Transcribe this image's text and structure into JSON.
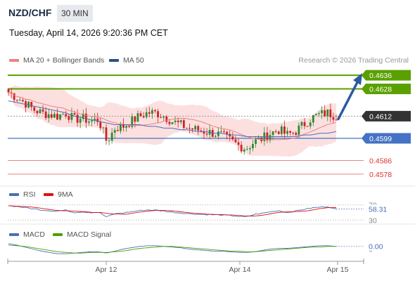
{
  "header": {
    "pair": "NZD/CHF",
    "timeframe": "30 MIN",
    "datetime": "Tuesday, April 14, 2026 9:20:36 PM CET"
  },
  "legend": {
    "ma20": "MA 20 + Bollinger Bands",
    "ma50": "MA 50",
    "credit": "Research © 2026 Trading Central",
    "rsi": "RSI",
    "rsi_ma": "9MA",
    "macd": "MACD",
    "macd_signal": "MACD Signal"
  },
  "colors": {
    "resistance": "#5aa000",
    "support": "#4472c4",
    "level_red": "#e03030",
    "current": "#333333",
    "bollinger_fill": "#fbd5d5",
    "ma20": "#f08080",
    "ma50": "#4a6fb5",
    "candle_up": "#2e8b2e",
    "candle_down": "#cc2222",
    "arrow": "#2c5aa0"
  },
  "chart_data": [
    {
      "type": "candlestick",
      "x_ticks": [
        "Apr 12",
        "Apr 14",
        "Apr 15"
      ],
      "ylim": [
        0.4573,
        0.4641
      ],
      "levels": [
        {
          "value": "0.4636",
          "kind": "resistance"
        },
        {
          "value": "0.4628",
          "kind": "resistance"
        },
        {
          "value": "0.4612",
          "kind": "current"
        },
        {
          "value": "0.4599",
          "kind": "support"
        },
        {
          "value": "0.4586",
          "kind": "level"
        },
        {
          "value": "0.4578",
          "kind": "level"
        }
      ],
      "close_path": [
        0.4626,
        0.4623,
        0.462,
        0.4616,
        0.4614,
        0.4613,
        0.4612,
        0.4614,
        0.461,
        0.4611,
        0.4609,
        0.461,
        0.4597,
        0.4605,
        0.4606,
        0.4609,
        0.4612,
        0.4614,
        0.4614,
        0.4612,
        0.4609,
        0.4607,
        0.4605,
        0.4604,
        0.4603,
        0.4602,
        0.4601,
        0.4598,
        0.4595,
        0.4593,
        0.4597,
        0.4599,
        0.4602,
        0.4604,
        0.4601,
        0.4603,
        0.4607,
        0.4611,
        0.4613,
        0.4614,
        0.4612
      ],
      "ma50_path": [
        0.4621,
        0.462,
        0.4619,
        0.4618,
        0.4617,
        0.4616,
        0.4615,
        0.4614,
        0.4612,
        0.4611,
        0.461,
        0.4609,
        0.4608,
        0.4607,
        0.4607,
        0.4607,
        0.4607,
        0.4606,
        0.4606,
        0.4605,
        0.4605,
        0.4604,
        0.4604,
        0.4603,
        0.4603,
        0.4602,
        0.4602,
        0.4601,
        0.4601,
        0.46,
        0.46,
        0.46,
        0.46,
        0.46,
        0.46,
        0.46,
        0.4601,
        0.4601,
        0.4602,
        0.4602,
        0.4603
      ]
    },
    {
      "type": "line",
      "name_label": "RSI",
      "ylim": [
        25,
        75
      ],
      "ticks": [
        "70",
        "30"
      ],
      "last_value": "58.31",
      "values": [
        68,
        66,
        63,
        60,
        57,
        55,
        54,
        56,
        50,
        52,
        50,
        51,
        38,
        47,
        49,
        52,
        55,
        57,
        56,
        54,
        51,
        49,
        47,
        46,
        45,
        44,
        43,
        42,
        40,
        38,
        45,
        48,
        52,
        55,
        50,
        54,
        58,
        62,
        64,
        66,
        58
      ]
    },
    {
      "type": "line",
      "name_label": "MACD",
      "ylim": [
        -0.0012,
        0.001
      ],
      "ticks": [
        "0",
        "0.00"
      ],
      "last_value": "0.00",
      "macd": [
        0.0008,
        0.0006,
        0.0003,
        0.0,
        -0.0003,
        -0.0005,
        -0.0007,
        -0.0007,
        -0.0006,
        -0.0005,
        -0.0004,
        -0.0004,
        -0.0006,
        -0.0003,
        0.0,
        0.0002,
        0.0004,
        0.0005,
        0.0005,
        0.0004,
        0.0003,
        0.0002,
        0.0,
        -0.0001,
        -0.0002,
        -0.0003,
        -0.0003,
        -0.0004,
        -0.0005,
        -0.0005,
        -0.0004,
        -0.0002,
        0.0,
        0.0001,
        0.0001,
        0.0002,
        0.0003,
        0.0004,
        0.0005,
        0.0005,
        0.0004
      ],
      "signal": [
        0.0006,
        0.0005,
        0.0004,
        0.0002,
        0.0,
        -0.0002,
        -0.0004,
        -0.0005,
        -0.0006,
        -0.0006,
        -0.0005,
        -0.0005,
        -0.0005,
        -0.0004,
        -0.0003,
        -0.0001,
        0.0001,
        0.0002,
        0.0003,
        0.0004,
        0.0004,
        0.0003,
        0.0002,
        0.0001,
        0.0,
        -0.0001,
        -0.0002,
        -0.0003,
        -0.0003,
        -0.0004,
        -0.0004,
        -0.0003,
        -0.0002,
        -0.0001,
        0.0,
        0.0001,
        0.0002,
        0.0003,
        0.0003,
        0.0004,
        0.0004
      ]
    }
  ]
}
